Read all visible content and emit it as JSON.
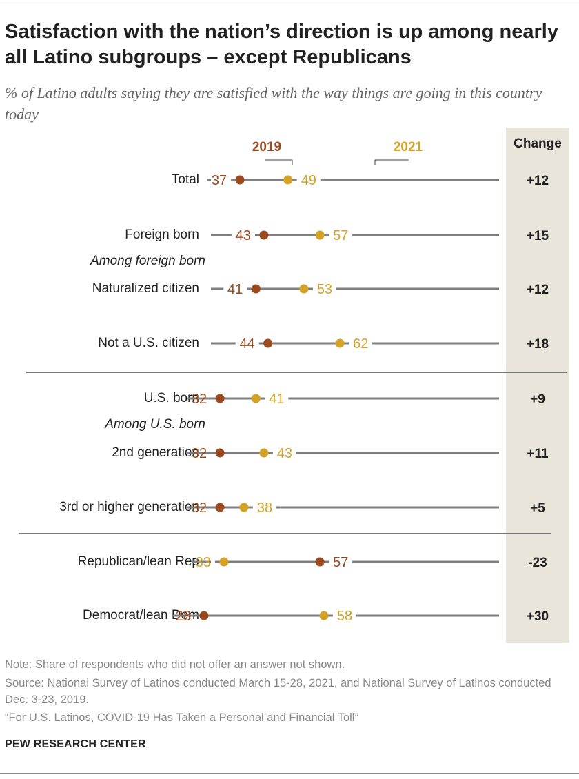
{
  "title": "Satisfaction with the nation’s direction is up among nearly all Latino subgroups – except Republicans",
  "subtitle": "% of Latino adults saying they are satisfied with the way things are going in this country today",
  "colors": {
    "y2019": "#9a4a1e",
    "y2021": "#d4a227",
    "line": "#7f7f7f",
    "change_bg": "#e9e5da",
    "rule": "#777777"
  },
  "chart_data": {
    "type": "dot-plot",
    "title": "Satisfaction with the nation’s direction is up among nearly all Latino subgroups – except Republicans",
    "subtitle": "% of Latino adults saying they are satisfied with the way things are going in this country today",
    "legend": [
      "2019",
      "2021"
    ],
    "change_header": "Change",
    "rows": [
      {
        "label": "Total",
        "v2019": 37,
        "v2021": 49,
        "change": "+12"
      },
      {
        "label": "Foreign born",
        "v2019": 43,
        "v2021": 57,
        "change": "+15"
      },
      {
        "label": "Among foreign born",
        "subheader": true
      },
      {
        "label": "Naturalized citizen",
        "v2019": 41,
        "v2021": 53,
        "change": "+12"
      },
      {
        "label": "Not a U.S. citizen",
        "v2019": 44,
        "v2021": 62,
        "change": "+18"
      },
      {
        "divider": true
      },
      {
        "label": "U.S. born",
        "v2019": 32,
        "v2021": 41,
        "change": "+9"
      },
      {
        "label": "Among U.S. born",
        "subheader": true
      },
      {
        "label": "2nd generation",
        "v2019": 32,
        "v2021": 43,
        "change": "+11"
      },
      {
        "label": "3rd or higher generation",
        "v2019": 32,
        "v2021": 38,
        "change": "+5"
      },
      {
        "divider": true
      },
      {
        "label": "Republican/lean Rep",
        "v2019": 57,
        "v2021": 33,
        "change": "-23"
      },
      {
        "label": "Democrat/lean Dem",
        "v2019": 28,
        "v2021": 58,
        "change": "+30"
      }
    ]
  },
  "footer": {
    "note": "Note: Share of respondents who did not offer an answer not shown.",
    "source": "Source: National Survey of Latinos conducted March 15-28, 2021, and National Survey of Latinos conducted Dec. 3-23, 2019.",
    "report": "“For U.S. Latinos, COVID-19 Has Taken a Personal and Financial Toll”",
    "org": "PEW RESEARCH CENTER"
  }
}
